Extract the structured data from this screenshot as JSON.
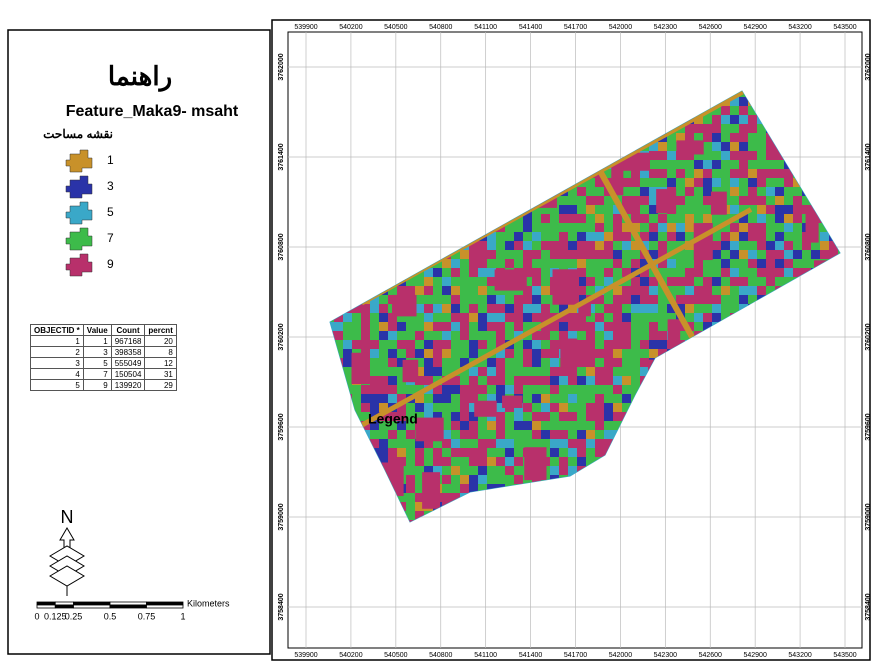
{
  "legend": {
    "title": "راهنما",
    "layer": "Feature_Maka9- msaht",
    "subtitle": "نقشه مساحت",
    "items": [
      {
        "label": "1",
        "color": "#c8912a"
      },
      {
        "label": "3",
        "color": "#2a33a8"
      },
      {
        "label": "5",
        "color": "#3aa8c8"
      },
      {
        "label": "7",
        "color": "#3dbb4a"
      },
      {
        "label": "9",
        "color": "#b8306b"
      }
    ]
  },
  "table": {
    "header": [
      "OBJECTID *",
      "Value",
      "Count",
      "percnt"
    ],
    "rows": [
      [
        1,
        1,
        967168,
        20
      ],
      [
        2,
        3,
        398358,
        8
      ],
      [
        3,
        5,
        555049,
        12
      ],
      [
        4,
        7,
        150504,
        31
      ],
      [
        5,
        9,
        139920,
        29
      ]
    ]
  },
  "map": {
    "label": "Legend",
    "x_ticks": [
      539900,
      540200,
      540500,
      540800,
      541100,
      541400,
      541700,
      542000,
      542300,
      542600,
      542900,
      543200,
      543500
    ],
    "y_ticks": [
      3762000,
      3761400,
      3760800,
      3760200,
      3759600,
      3759000,
      3758400
    ]
  },
  "north_arrow": "N",
  "scale_bar": {
    "labels": [
      "0",
      "0.125",
      "0.25",
      "0.5",
      "0.75",
      "1"
    ],
    "unit": "Kilometers"
  }
}
